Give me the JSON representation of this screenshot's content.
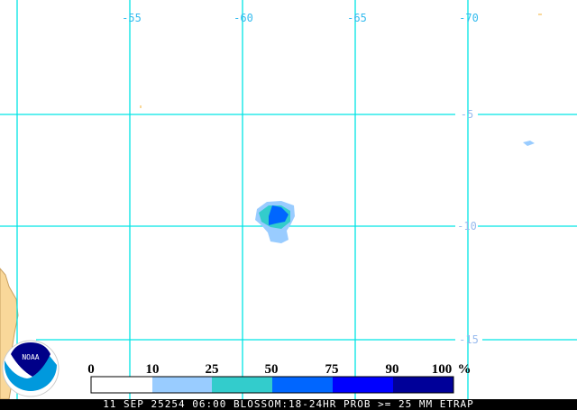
{
  "map": {
    "longitude_labels": [
      "-55",
      "-60",
      "-65",
      "-70"
    ],
    "latitude_labels": [
      "-5",
      "-10",
      "-15"
    ],
    "grid_color": "#00e5e5",
    "land_color": "#f9d89a",
    "label_color_lon": "#33bbee",
    "label_color_lat": "#99bbee"
  },
  "logo": {
    "text": "NOAA"
  },
  "colorbar": {
    "ticks": [
      "0",
      "10",
      "25",
      "50",
      "75",
      "90",
      "100"
    ],
    "unit": "%",
    "colors": [
      "#ffffff",
      "#99ccff",
      "#33cccc",
      "#0066ff",
      "#0000ff",
      "#000099"
    ]
  },
  "footer": {
    "text": "11 SEP 25254 06:00 BLOSSOM:18-24HR PROB >= 25 MM ETRAP"
  }
}
